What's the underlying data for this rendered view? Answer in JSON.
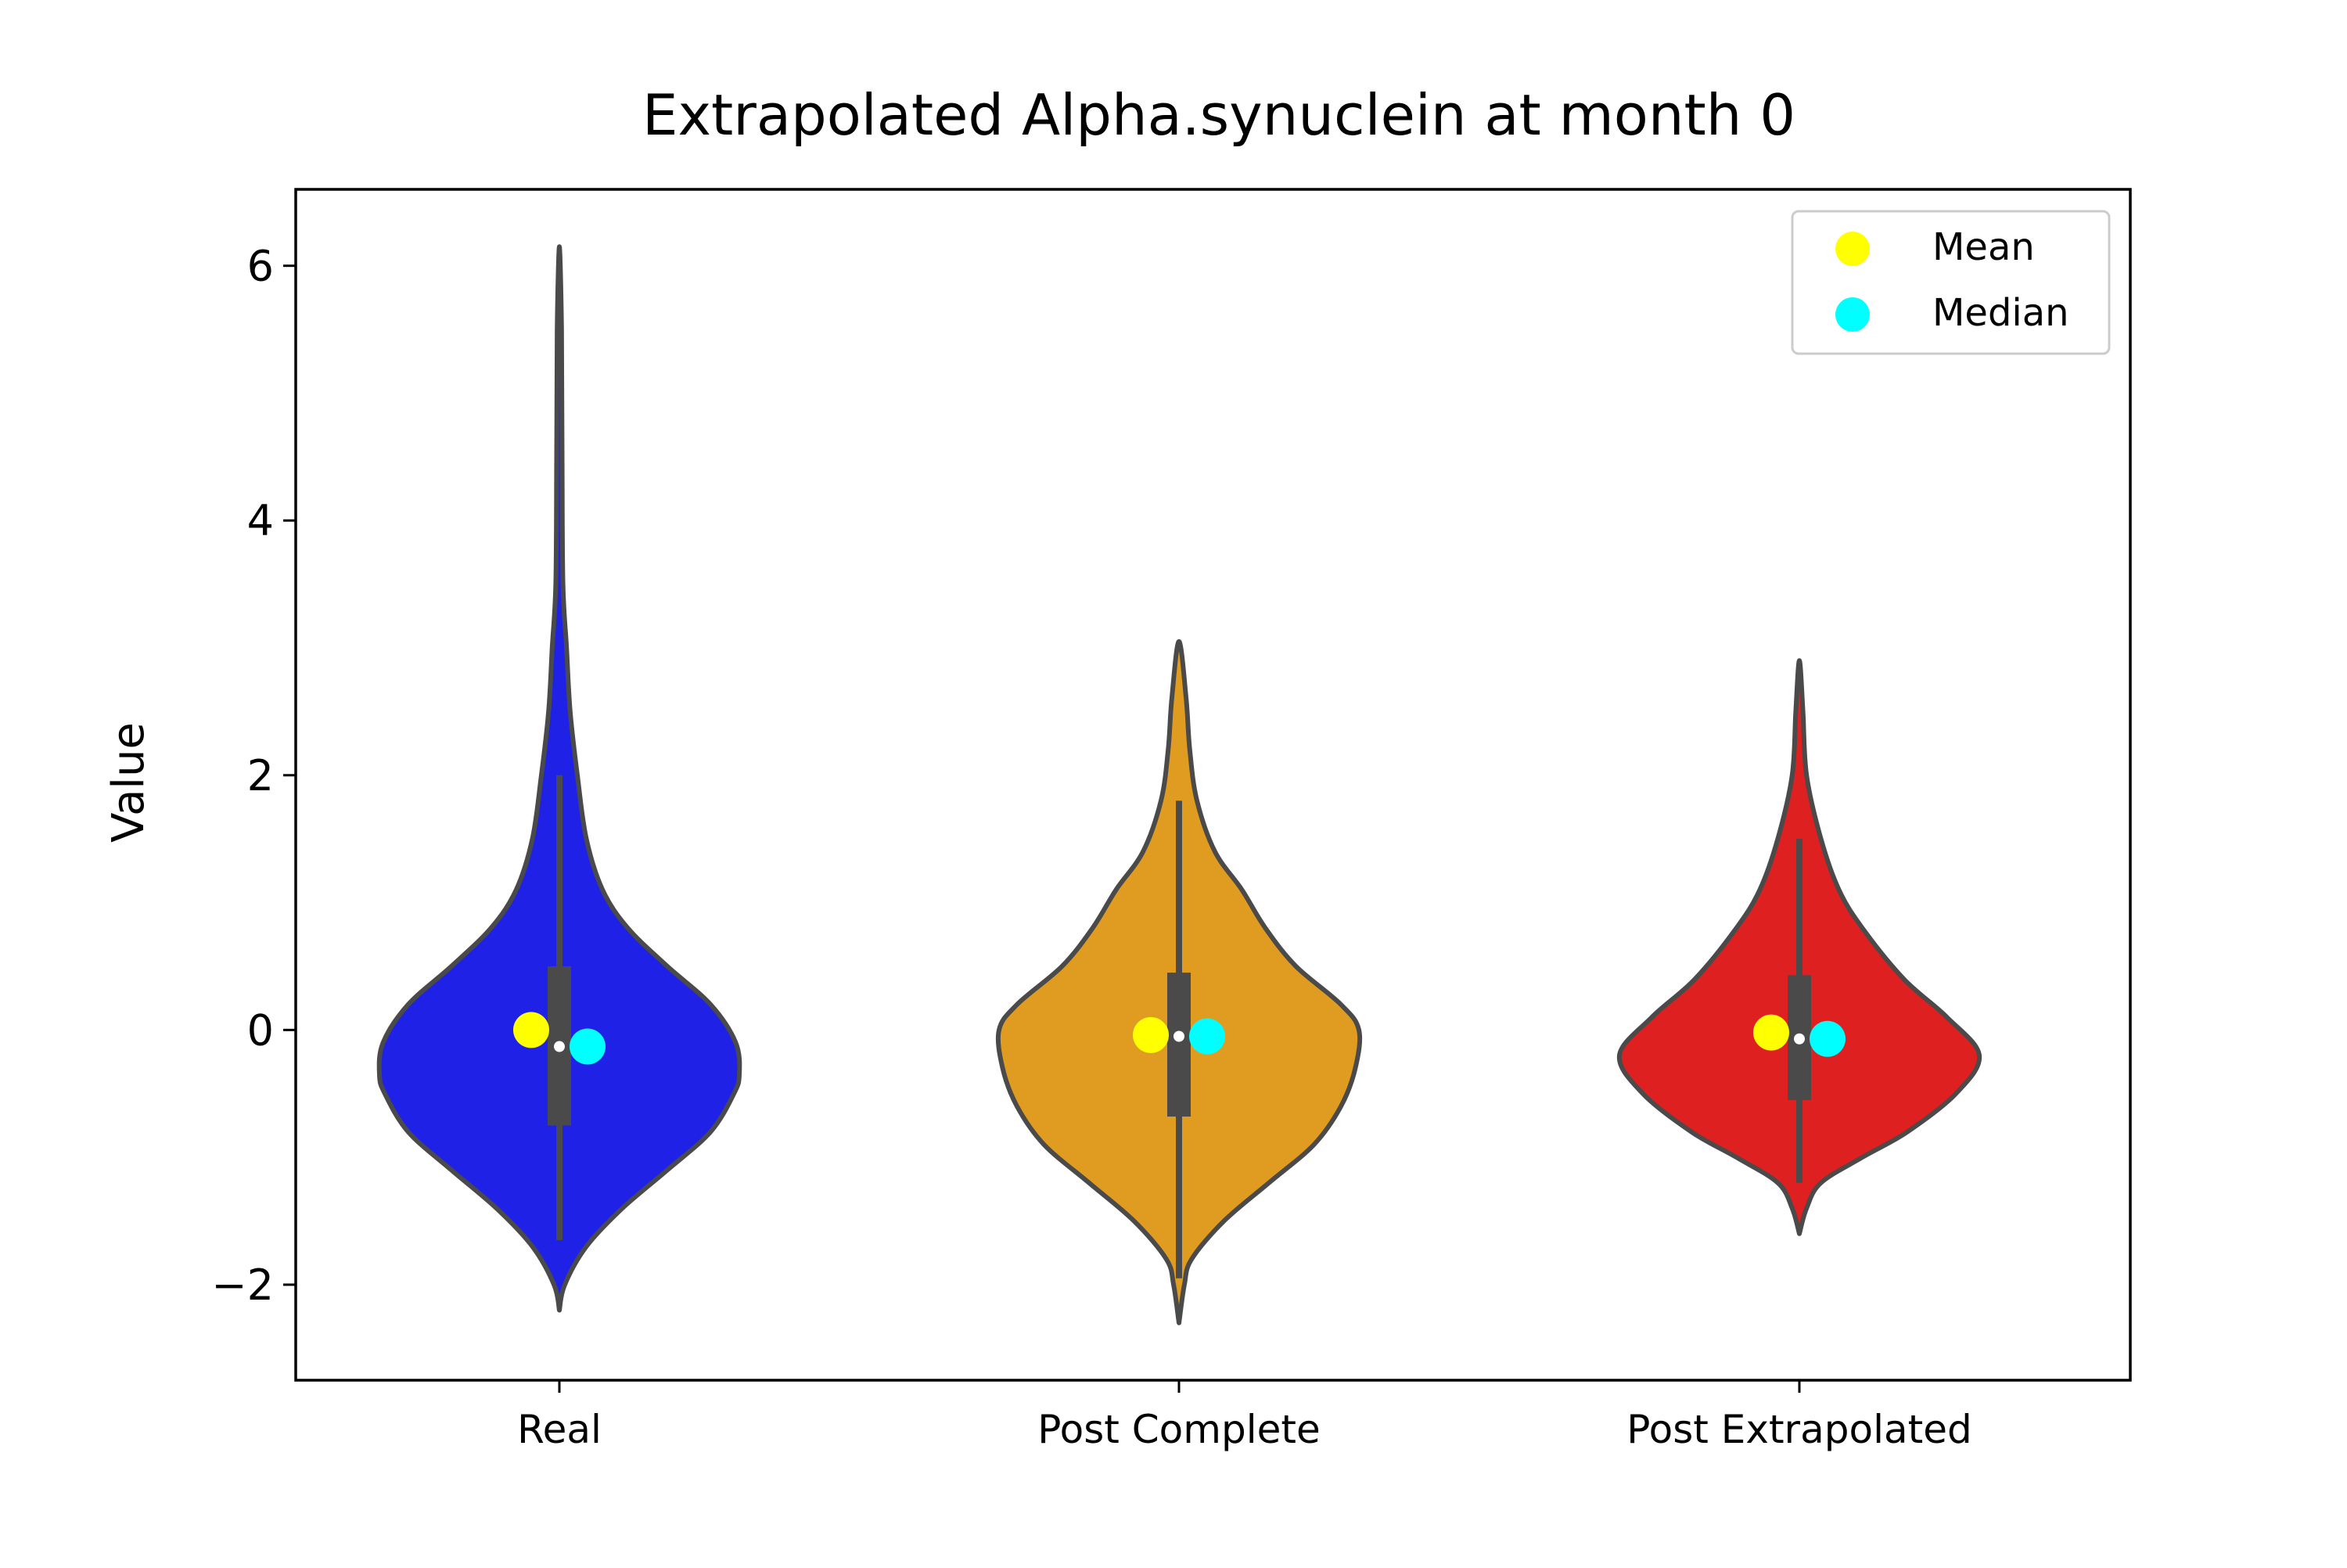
{
  "chart_data": {
    "type": "violin",
    "title": "Extrapolated Alpha.synuclein at month 0",
    "xlabel": "",
    "ylabel": "Value",
    "ylim": [
      -2.75,
      6.6
    ],
    "yticks": [
      -2,
      0,
      2,
      4,
      6
    ],
    "ytick_labels": [
      "−2",
      "0",
      "2",
      "4",
      "6"
    ],
    "categories": [
      "Real",
      "Post Complete",
      "Post Extrapolated"
    ],
    "grid": false,
    "legend": {
      "placement": "top-right",
      "entries": [
        {
          "label": "Mean",
          "color": "#ffff00"
        },
        {
          "label": "Median",
          "color": "#00ffff"
        }
      ]
    },
    "series": [
      {
        "category": "Real",
        "color": "#1f22e6",
        "min": -2.2,
        "max": 6.15,
        "whisker_low": -1.65,
        "whisker_high": 2.0,
        "q1": -0.75,
        "q3": 0.5,
        "median": -0.13,
        "mean": 0.0,
        "density_profile": [
          [
            -2.2,
            0.0
          ],
          [
            -2.0,
            0.03
          ],
          [
            -1.7,
            0.15
          ],
          [
            -1.4,
            0.35
          ],
          [
            -1.1,
            0.6
          ],
          [
            -0.8,
            0.84
          ],
          [
            -0.5,
            0.97
          ],
          [
            -0.35,
            1.0
          ],
          [
            -0.1,
            0.98
          ],
          [
            0.2,
            0.84
          ],
          [
            0.5,
            0.6
          ],
          [
            0.8,
            0.38
          ],
          [
            1.1,
            0.24
          ],
          [
            1.5,
            0.15
          ],
          [
            2.0,
            0.1
          ],
          [
            2.5,
            0.06
          ],
          [
            3.0,
            0.04
          ],
          [
            3.5,
            0.02
          ],
          [
            4.5,
            0.015
          ],
          [
            5.5,
            0.012
          ],
          [
            6.15,
            0.0
          ]
        ]
      },
      {
        "category": "Post Complete",
        "color": "#e09c20",
        "min": -2.3,
        "max": 3.05,
        "whisker_low": -1.95,
        "whisker_high": 1.8,
        "q1": -0.68,
        "q3": 0.45,
        "median": -0.05,
        "mean": -0.04,
        "density_profile": [
          [
            -2.3,
            0.0
          ],
          [
            -2.0,
            0.03
          ],
          [
            -1.8,
            0.07
          ],
          [
            -1.5,
            0.25
          ],
          [
            -1.2,
            0.5
          ],
          [
            -0.9,
            0.75
          ],
          [
            -0.6,
            0.9
          ],
          [
            -0.3,
            0.98
          ],
          [
            0.0,
            1.0
          ],
          [
            0.2,
            0.9
          ],
          [
            0.5,
            0.65
          ],
          [
            0.8,
            0.48
          ],
          [
            1.1,
            0.35
          ],
          [
            1.4,
            0.2
          ],
          [
            1.8,
            0.1
          ],
          [
            2.2,
            0.06
          ],
          [
            2.6,
            0.04
          ],
          [
            3.05,
            0.0
          ]
        ]
      },
      {
        "category": "Post Extrapolated",
        "color": "#df2020",
        "min": -1.6,
        "max": 2.9,
        "whisker_low": -1.2,
        "whisker_high": 1.5,
        "q1": -0.55,
        "q3": 0.43,
        "median": -0.07,
        "mean": -0.02,
        "density_profile": [
          [
            -1.6,
            0.0
          ],
          [
            -1.4,
            0.04
          ],
          [
            -1.2,
            0.12
          ],
          [
            -1.0,
            0.35
          ],
          [
            -0.8,
            0.6
          ],
          [
            -0.5,
            0.87
          ],
          [
            -0.2,
            1.0
          ],
          [
            0.1,
            0.82
          ],
          [
            0.4,
            0.58
          ],
          [
            0.8,
            0.35
          ],
          [
            1.1,
            0.22
          ],
          [
            1.5,
            0.12
          ],
          [
            2.0,
            0.04
          ],
          [
            2.5,
            0.02
          ],
          [
            2.9,
            0.0
          ]
        ]
      }
    ]
  }
}
